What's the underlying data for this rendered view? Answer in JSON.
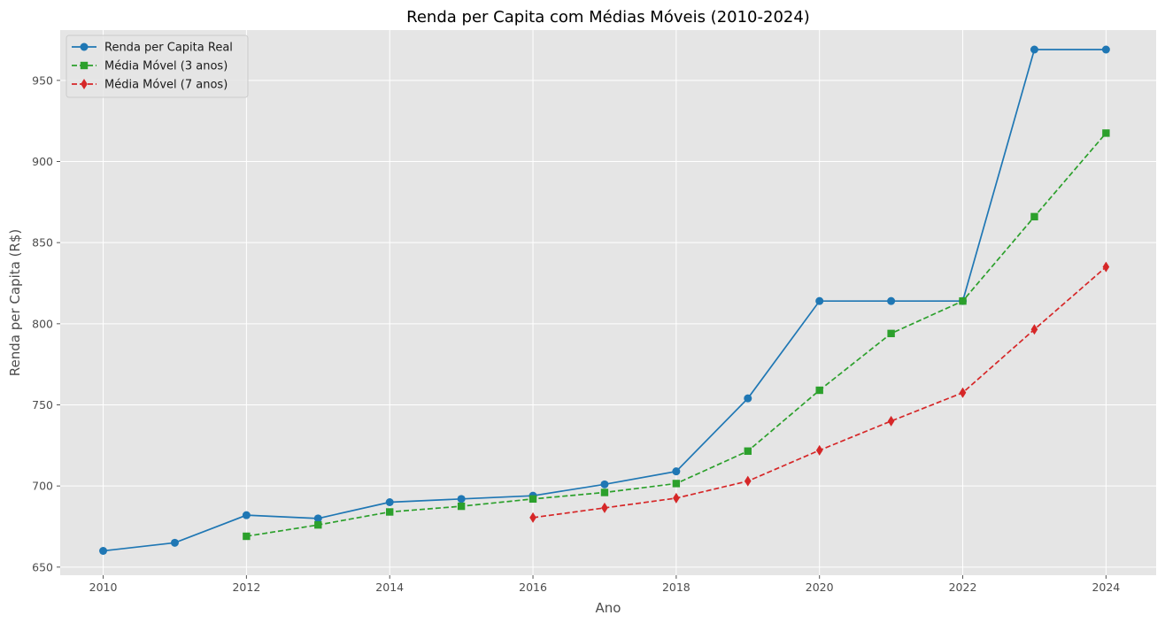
{
  "chart_data": {
    "type": "line",
    "title": "Renda per Capita com Médias Móveis (2010-2024)",
    "xlabel": "Ano",
    "ylabel": "Renda per Capita (R$)",
    "xlim": [
      2009.4,
      2024.7
    ],
    "ylim": [
      645,
      981
    ],
    "x_ticks": [
      2010,
      2012,
      2014,
      2016,
      2018,
      2020,
      2022,
      2024
    ],
    "y_ticks": [
      650,
      700,
      750,
      800,
      850,
      900,
      950
    ],
    "grid": true,
    "legend_position": "top-left",
    "x": [
      2010,
      2011,
      2012,
      2013,
      2014,
      2015,
      2016,
      2017,
      2018,
      2019,
      2020,
      2021,
      2022,
      2023,
      2024
    ],
    "series": [
      {
        "name": "Renda per Capita Real",
        "color": "#1f77b4",
        "linestyle": "solid",
        "marker": "circle",
        "values": [
          660,
          665,
          682,
          680,
          690,
          692,
          694,
          701,
          709,
          754,
          814,
          814,
          814,
          969,
          969
        ]
      },
      {
        "name": "Média Móvel (3 anos)",
        "color": "#2ca02c",
        "linestyle": "dashed",
        "marker": "square",
        "values": [
          null,
          null,
          669,
          676,
          684,
          687.5,
          692,
          696,
          701.5,
          721.5,
          759,
          794,
          814,
          866,
          917.5
        ]
      },
      {
        "name": "Média Móvel (7 anos)",
        "color": "#d62728",
        "linestyle": "dashed",
        "marker": "diamond",
        "values": [
          null,
          null,
          null,
          null,
          null,
          null,
          680.5,
          686.5,
          692.5,
          703,
          722,
          740,
          757.5,
          796.5,
          835
        ]
      }
    ]
  }
}
